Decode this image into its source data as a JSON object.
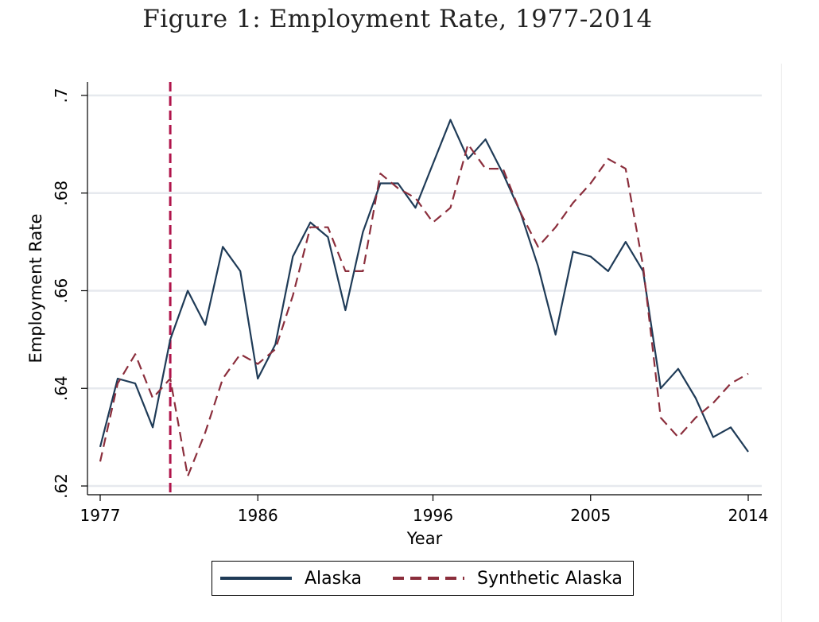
{
  "chart_data": {
    "type": "line",
    "title": "Figure 1: Employment Rate, 1977-2014",
    "xlabel": "Year",
    "ylabel": "Employment Rate",
    "xlim": [
      1977,
      2014
    ],
    "ylim": [
      0.62,
      0.7
    ],
    "x_ticks": [
      1977,
      1986,
      1996,
      2005,
      2014
    ],
    "x_tick_labels": [
      "1977",
      "1986",
      "1996",
      "2005",
      "2014"
    ],
    "y_ticks": [
      0.62,
      0.64,
      0.66,
      0.68,
      0.7
    ],
    "y_tick_labels": [
      ".62",
      ".64",
      ".66",
      ".68",
      ".7"
    ],
    "grid": "horizontal",
    "vertical_reference_line": {
      "x": 1981,
      "style": "dashed",
      "color": "#b0154b"
    },
    "x": [
      1977,
      1978,
      1979,
      1980,
      1981,
      1982,
      1983,
      1984,
      1985,
      1986,
      1987,
      1988,
      1989,
      1990,
      1991,
      1992,
      1993,
      1994,
      1995,
      1996,
      1997,
      1998,
      1999,
      2000,
      2001,
      2002,
      2003,
      2004,
      2005,
      2006,
      2007,
      2008,
      2009,
      2010,
      2011,
      2012,
      2013,
      2014
    ],
    "series": [
      {
        "name": "Alaska",
        "color": "#1f3b57",
        "dash": "solid",
        "values": [
          0.628,
          0.642,
          0.641,
          0.632,
          0.65,
          0.66,
          0.653,
          0.669,
          0.664,
          0.642,
          0.649,
          0.667,
          0.674,
          0.671,
          0.656,
          0.672,
          0.682,
          0.682,
          0.677,
          0.686,
          0.695,
          0.687,
          0.691,
          0.684,
          0.676,
          0.665,
          0.651,
          0.668,
          0.667,
          0.664,
          0.67,
          0.664,
          0.64,
          0.644,
          0.638,
          0.63,
          0.632,
          0.627
        ]
      },
      {
        "name": "Synthetic Alaska",
        "color": "#8b2e3c",
        "dash": "dashed",
        "values": [
          0.625,
          0.641,
          0.647,
          0.638,
          0.642,
          0.622,
          0.631,
          0.642,
          0.647,
          0.645,
          0.648,
          0.659,
          0.673,
          0.673,
          0.664,
          0.664,
          0.684,
          0.681,
          0.679,
          0.674,
          0.677,
          0.69,
          0.685,
          0.685,
          0.676,
          0.669,
          0.673,
          0.678,
          0.682,
          0.687,
          0.685,
          0.665,
          0.634,
          0.63,
          0.634,
          0.637,
          0.641,
          0.643
        ]
      }
    ],
    "legend_position": "bottom"
  }
}
